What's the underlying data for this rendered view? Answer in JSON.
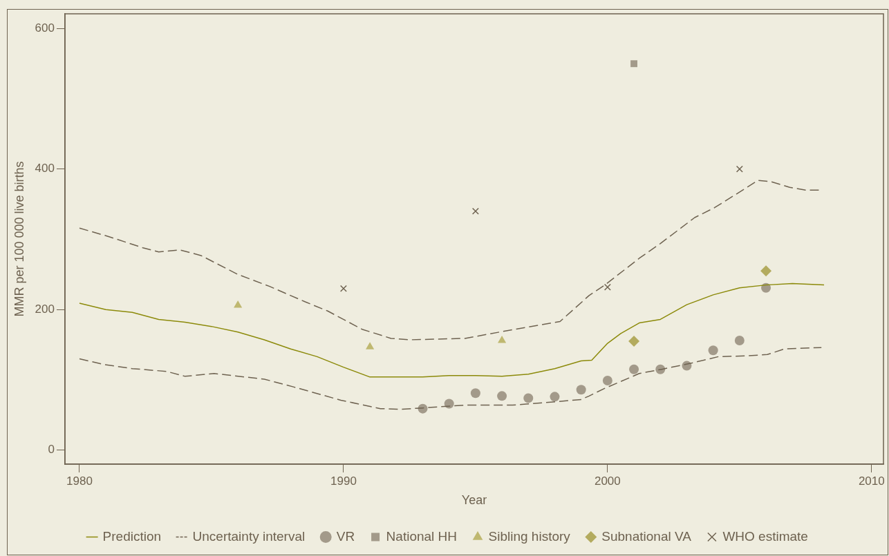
{
  "chart_data": {
    "type": "line",
    "xlabel": "Year",
    "ylabel": "MMR per 100 000 live births",
    "xlim": [
      1979.45,
      2010.45
    ],
    "xticks": [
      1980,
      1990,
      2000,
      2010
    ],
    "ylim": [
      -20,
      621
    ],
    "yticks": [
      0,
      200,
      400,
      600
    ],
    "grid": false,
    "legend": "bottom",
    "series": [
      {
        "name": "Prediction",
        "type": "line",
        "color": "#8c8a0a",
        "line_style": "solid",
        "marker": "none",
        "x": [
          1980,
          1981,
          1982,
          1983,
          1984,
          1985,
          1986,
          1987,
          1988,
          1989,
          1990,
          1991,
          1991.3,
          1992,
          1993,
          1994,
          1995,
          1996,
          1997,
          1998,
          1999,
          1999.4,
          2000,
          2000.5,
          2001.2,
          2002,
          2003,
          2004,
          2005,
          2006,
          2007,
          2008.2
        ],
        "values": [
          209,
          200,
          196,
          186,
          182,
          176,
          168,
          157,
          144,
          133,
          118,
          104,
          104,
          104,
          104,
          106,
          106,
          105,
          108,
          116,
          127,
          128,
          152,
          166,
          181,
          186,
          207,
          221,
          231,
          235,
          237,
          235
        ]
      },
      {
        "name": "Uncertainty interval",
        "type": "line",
        "color": "#6e6250",
        "line_style": "dashed",
        "marker": "none",
        "x": [
          1980,
          1981.1,
          1982.4,
          1983,
          1983.8,
          1984.6,
          1986,
          1987.2,
          1988.55,
          1989.4,
          1990.7,
          1991.8,
          1992.5,
          1994.6,
          1996.2,
          1998.2,
          1999.3,
          1999.9,
          2001.2,
          2002,
          2003.3,
          2004.05,
          2005.2,
          2005.7,
          2006.2,
          2006.9,
          2007.5,
          2008
        ],
        "values": [
          316,
          304,
          288,
          282,
          285,
          277,
          250,
          233,
          211,
          198,
          172,
          159,
          157,
          159,
          170,
          183,
          220,
          235,
          273,
          294,
          331,
          345,
          372,
          384,
          382,
          374,
          370,
          370
        ]
      },
      {
        "type": "line",
        "color": "#6e6250",
        "line_style": "dashed",
        "marker": "none",
        "x": [
          1980,
          1980.9,
          1982,
          1983.3,
          1984,
          1985.1,
          1987,
          1988.1,
          1989.9,
          1991.4,
          1992.1,
          1993,
          1994.6,
          1996.4,
          1998.1,
          1999,
          1999.3,
          1999.9,
          2001.2,
          2002.05,
          2003.2,
          2004.2,
          2005.2,
          2006.05,
          2006.7,
          2008.1
        ],
        "values": [
          130,
          122,
          116,
          112,
          105,
          109,
          101,
          90,
          71,
          59,
          58,
          60,
          64,
          64,
          69,
          72,
          77,
          88,
          109,
          115,
          124,
          133,
          134,
          136,
          144,
          146
        ]
      },
      {
        "name": "VR",
        "type": "scatter",
        "color": "#a39a8a",
        "marker": "circle",
        "x": [
          1993,
          1994,
          1995,
          1996,
          1997,
          1998,
          1999,
          2000,
          2001,
          2002,
          2003,
          2004,
          2005,
          2006
        ],
        "values": [
          59,
          66,
          81,
          77,
          74,
          76,
          86,
          99,
          115,
          115,
          120,
          142,
          156,
          231
        ]
      },
      {
        "name": "National HH",
        "type": "scatter",
        "color": "#a39a8a",
        "marker": "square",
        "x": [
          2001
        ],
        "values": [
          550
        ]
      },
      {
        "name": "Sibling history",
        "type": "scatter",
        "color": "#bfb870",
        "marker": "triangle",
        "x": [
          1986,
          1991,
          1996
        ],
        "values": [
          206,
          147,
          156
        ]
      },
      {
        "name": "Subnational VA",
        "type": "scatter",
        "color": "#b3ab5e",
        "marker": "diamond",
        "x": [
          2001,
          2006
        ],
        "values": [
          155,
          255
        ]
      },
      {
        "name": "WHO estimate",
        "type": "scatter",
        "color": "#6e6250",
        "marker": "cross",
        "x": [
          1990,
          1995,
          2000,
          2005
        ],
        "values": [
          230,
          340,
          232,
          400
        ]
      }
    ]
  }
}
